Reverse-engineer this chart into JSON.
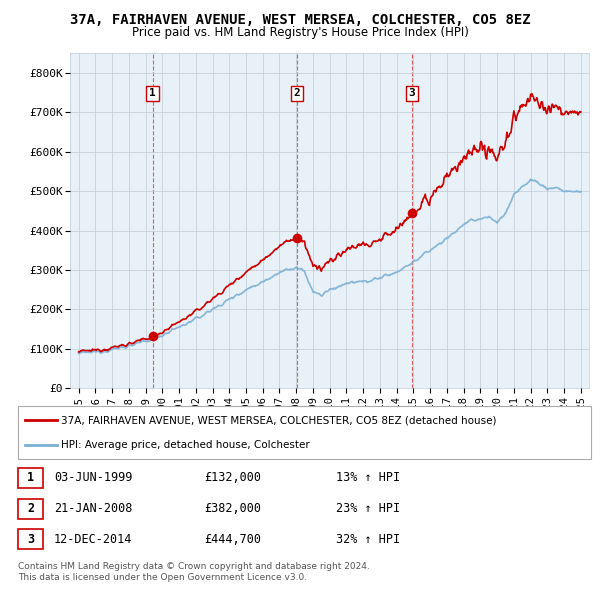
{
  "title_line1": "37A, FAIRHAVEN AVENUE, WEST MERSEA, COLCHESTER, CO5 8EZ",
  "title_line2": "Price paid vs. HM Land Registry's House Price Index (HPI)",
  "ylim": [
    0,
    850000
  ],
  "yticks": [
    0,
    100000,
    200000,
    300000,
    400000,
    500000,
    600000,
    700000,
    800000
  ],
  "ytick_labels": [
    "£0",
    "£100K",
    "£200K",
    "£300K",
    "£400K",
    "£500K",
    "£600K",
    "£700K",
    "£800K"
  ],
  "xlim": [
    1994.5,
    2025.5
  ],
  "xticks": [
    1995,
    1996,
    1997,
    1998,
    1999,
    2000,
    2001,
    2002,
    2003,
    2004,
    2005,
    2006,
    2007,
    2008,
    2009,
    2010,
    2011,
    2012,
    2013,
    2014,
    2015,
    2016,
    2017,
    2018,
    2019,
    2020,
    2021,
    2022,
    2023,
    2024,
    2025
  ],
  "sale_dates": [
    1999.42,
    2008.05,
    2014.92
  ],
  "sale_prices": [
    132000,
    382000,
    444700
  ],
  "sale_labels": [
    "1",
    "2",
    "3"
  ],
  "hpi_color": "#7bafd4",
  "price_color": "#cc0000",
  "vline_color": "#cc0000",
  "chart_bg_color": "#e8f0f8",
  "background_color": "#ffffff",
  "grid_color": "#c0ccd8",
  "legend_label_price": "37A, FAIRHAVEN AVENUE, WEST MERSEA, COLCHESTER, CO5 8EZ (detached house)",
  "legend_label_hpi": "HPI: Average price, detached house, Colchester",
  "table_rows": [
    [
      "1",
      "03-JUN-1999",
      "£132,000",
      "13% ↑ HPI"
    ],
    [
      "2",
      "21-JAN-2008",
      "£382,000",
      "23% ↑ HPI"
    ],
    [
      "3",
      "12-DEC-2014",
      "£444,700",
      "32% ↑ HPI"
    ]
  ],
  "footnote1": "Contains HM Land Registry data © Crown copyright and database right 2024.",
  "footnote2": "This data is licensed under the Open Government Licence v3.0."
}
